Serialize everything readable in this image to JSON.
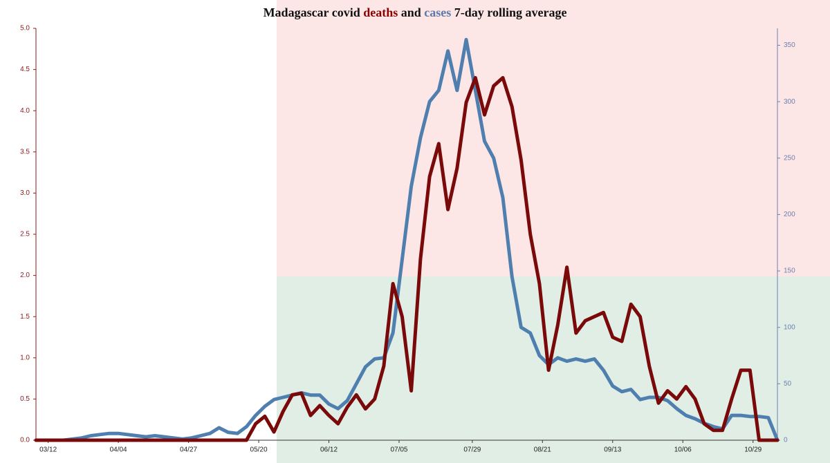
{
  "chart_data": {
    "type": "line",
    "title_parts": [
      "Madagascar covid",
      "deaths",
      "and",
      "cases",
      "7-day rolling average"
    ],
    "x": [
      "03/08",
      "03/11",
      "03/14",
      "03/17",
      "03/20",
      "03/23",
      "03/26",
      "03/29",
      "04/01",
      "04/04",
      "04/07",
      "04/10",
      "04/13",
      "04/16",
      "04/19",
      "04/22",
      "04/25",
      "04/28",
      "05/01",
      "05/04",
      "05/07",
      "05/10",
      "05/13",
      "05/16",
      "05/19",
      "05/22",
      "05/25",
      "05/28",
      "05/31",
      "06/03",
      "06/06",
      "06/09",
      "06/12",
      "06/15",
      "06/18",
      "06/21",
      "06/24",
      "06/27",
      "06/30",
      "07/03",
      "07/06",
      "07/09",
      "07/12",
      "07/15",
      "07/18",
      "07/21",
      "07/24",
      "07/27",
      "07/30",
      "08/02",
      "08/05",
      "08/08",
      "08/11",
      "08/14",
      "08/17",
      "08/20",
      "08/23",
      "08/26",
      "08/29",
      "09/01",
      "09/04",
      "09/07",
      "09/10",
      "09/13",
      "09/16",
      "09/19",
      "09/22",
      "09/25",
      "09/28",
      "10/01",
      "10/04",
      "10/07",
      "10/10",
      "10/13",
      "10/16",
      "10/19",
      "10/22",
      "10/25",
      "10/28",
      "10/31",
      "11/03",
      "11/06"
    ],
    "xlim": [
      "03/08",
      "11/06"
    ],
    "xticks": [
      "03/12",
      "04/04",
      "04/27",
      "05/20",
      "06/12",
      "07/05",
      "07/29",
      "08/21",
      "09/13",
      "10/06",
      "10/29"
    ],
    "series": [
      {
        "name": "cases",
        "color": "#4f7fae",
        "axis": "y2",
        "values": [
          0,
          0,
          0,
          0,
          1,
          2,
          4,
          5,
          6,
          6,
          5,
          4,
          3,
          4,
          3,
          2,
          1,
          2,
          4,
          6,
          11,
          7,
          6,
          12,
          22,
          30,
          36,
          38,
          40,
          42,
          40,
          40,
          32,
          28,
          35,
          50,
          65,
          72,
          73,
          95,
          160,
          225,
          268,
          300,
          310,
          345,
          310,
          355,
          310,
          265,
          250,
          215,
          145,
          100,
          95,
          75,
          67,
          73,
          70,
          72,
          70,
          72,
          62,
          48,
          43,
          45,
          36,
          38,
          38,
          35,
          28,
          22,
          19,
          15,
          12,
          10,
          22,
          22,
          21,
          21,
          20,
          0
        ]
      },
      {
        "name": "deaths",
        "color": "#7a0a0a",
        "values": [
          0,
          0,
          0,
          0,
          0,
          0,
          0,
          0,
          0,
          0,
          0,
          0,
          0,
          0,
          0,
          0,
          0,
          0,
          0,
          0,
          0,
          0,
          0,
          0,
          0.2,
          0.29,
          0.1,
          0.35,
          0.55,
          0.57,
          0.3,
          0.42,
          0.3,
          0.2,
          0.4,
          0.55,
          0.38,
          0.5,
          0.9,
          1.9,
          1.5,
          0.6,
          2.2,
          3.2,
          3.6,
          2.8,
          3.3,
          4.1,
          4.4,
          3.95,
          4.3,
          4.4,
          4.05,
          3.4,
          2.5,
          1.9,
          0.85,
          1.4,
          2.1,
          1.3,
          1.45,
          1.5,
          1.55,
          1.25,
          1.2,
          1.65,
          1.5,
          0.9,
          0.45,
          0.6,
          0.5,
          0.65,
          0.5,
          0.2,
          0.12,
          0.12,
          0.5,
          0.85,
          0.85,
          0,
          0,
          0
        ]
      }
    ],
    "ylim": [
      0,
      5
    ],
    "yticks": [
      {
        "value": 0,
        "label": "0.0"
      },
      {
        "value": 0.5,
        "label": "0.5"
      },
      {
        "value": 1,
        "label": "1.0"
      },
      {
        "value": 1.5,
        "label": "1.5"
      },
      {
        "value": 2,
        "label": "2.0"
      },
      {
        "value": 2.5,
        "label": "2.5"
      },
      {
        "value": 3,
        "label": "3.0"
      },
      {
        "value": 3.5,
        "label": "3.5"
      },
      {
        "value": 4,
        "label": "4.0"
      },
      {
        "value": 4.5,
        "label": "4.5"
      },
      {
        "value": 5,
        "label": "5.0"
      }
    ],
    "y2lim": [
      0,
      365
    ],
    "y2ticks": [
      0,
      50,
      100,
      150,
      200,
      250,
      300,
      350
    ],
    "ytick_color": "#8b1a1a",
    "y2tick_color": "#6d7fb0"
  }
}
